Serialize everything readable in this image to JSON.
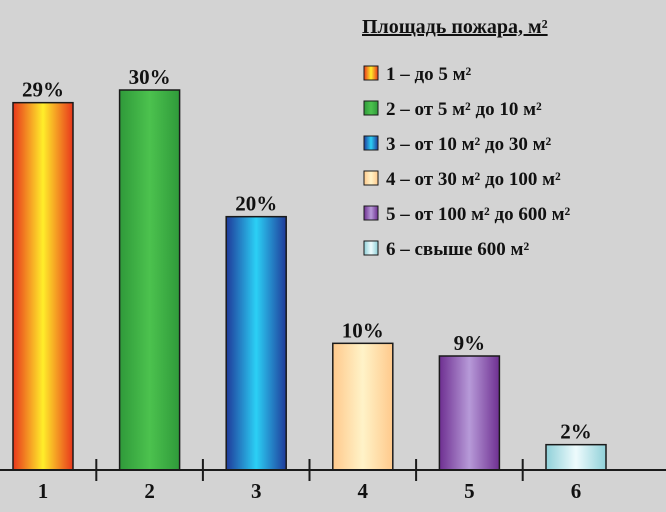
{
  "chart_data": {
    "type": "bar",
    "title": "",
    "xlabel": "",
    "ylabel": "",
    "ylim": [
      0,
      30
    ],
    "grid": false,
    "categories": [
      "1",
      "2",
      "3",
      "4",
      "5",
      "6"
    ],
    "values": [
      29,
      30,
      20,
      10,
      9,
      2
    ],
    "value_labels": [
      "29%",
      "30%",
      "20%",
      "10%",
      "9%",
      "2%"
    ],
    "legend": {
      "placement": "top-right",
      "title": "Площадь пожара, м²",
      "entries": [
        "1 – до 5 м²",
        "2 – от 5 м² до 10 м²",
        "3 – от 10 м² до 30 м²",
        "4 – от 30 м² до 100 м²",
        "5 – от 100 м² до 600 м²",
        "6 – свыше 600 м²"
      ]
    },
    "colors": [
      {
        "edge": "#e8361c",
        "center": "#ffee2a"
      },
      {
        "edge": "#2f9a3a",
        "center": "#4cc24e"
      },
      {
        "edge": "#1f3a9a",
        "center": "#2bd0f5"
      },
      {
        "edge": "#ffc98c",
        "center": "#fff3c8"
      },
      {
        "edge": "#6e2f91",
        "center": "#b79ad8"
      },
      {
        "edge": "#8fd0d8",
        "center": "#eefbfd"
      }
    ]
  }
}
